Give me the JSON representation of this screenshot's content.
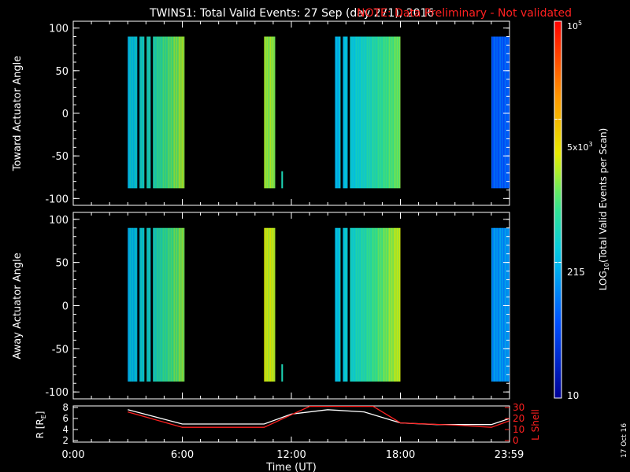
{
  "header": {
    "title": "TWINS1: Total Valid Events: 27 Sep (day 271), 2016",
    "note": "NOTE: Data Preliminary - Not validated"
  },
  "footer": {
    "date_stamp": "17 Oct 16"
  },
  "colors": {
    "note": "#ff2020",
    "axes": "#ffffff",
    "lshell": "#ff2020",
    "radius": "#ffffff"
  },
  "chart_data": [
    {
      "type": "heatmap",
      "ylabel": "Toward Actuator Angle",
      "ylim": [
        -108,
        108
      ],
      "yticks": [
        100,
        50,
        0,
        -50,
        -100
      ],
      "xlim_hours": [
        0,
        24
      ],
      "angle_range": [
        -88,
        90
      ],
      "time_blocks": [
        {
          "start": 3.0,
          "end": 6.1,
          "level": 0.38,
          "gradient_to": 0.6,
          "gaps": [
            3.55,
            3.95,
            4.3
          ]
        },
        {
          "start": 10.5,
          "end": 11.1,
          "level": 0.58
        },
        {
          "start": 14.4,
          "end": 18.0,
          "level": 0.36,
          "gradient_to": 0.56,
          "gaps": [
            14.75,
            15.15
          ]
        },
        {
          "start": 23.0,
          "end": 24.0,
          "level": 0.22
        }
      ],
      "spikes": [
        {
          "time": 11.45,
          "angle_from": -88,
          "angle_to": -68
        }
      ]
    },
    {
      "type": "heatmap",
      "ylabel": "Away Actuator Angle",
      "ylim": [
        -108,
        108
      ],
      "yticks": [
        100,
        50,
        0,
        -50,
        -100
      ],
      "xlim_hours": [
        0,
        24
      ],
      "angle_range": [
        -88,
        90
      ],
      "time_blocks": [
        {
          "start": 3.0,
          "end": 6.1,
          "level": 0.36,
          "gradient_to": 0.58,
          "gaps": [
            3.55,
            3.95,
            4.3
          ]
        },
        {
          "start": 10.5,
          "end": 11.1,
          "level": 0.62
        },
        {
          "start": 14.4,
          "end": 18.0,
          "level": 0.38,
          "gradient_to": 0.62,
          "gaps": [
            14.75,
            15.15
          ]
        },
        {
          "start": 23.0,
          "end": 24.0,
          "level": 0.3
        }
      ],
      "spikes": [
        {
          "time": 11.45,
          "angle_from": -88,
          "angle_to": -68
        }
      ]
    },
    {
      "type": "line",
      "xlabel": "Time (UT)",
      "xticks": [
        "0:00",
        "6:00",
        "12:00",
        "18:00",
        "23:59"
      ],
      "xtick_hours": [
        0,
        6,
        12,
        18,
        23.98
      ],
      "ylabel_left": "R [R",
      "ylabel_left_sub": "E",
      "ylabel_left_end": "]",
      "ylim_left": [
        2,
        8
      ],
      "yticks_left": [
        8,
        6,
        4,
        2
      ],
      "ylabel_right": "L Shell",
      "ylim_right": [
        0,
        30
      ],
      "yticks_right": [
        30,
        20,
        10,
        0
      ],
      "series": [
        {
          "name": "R",
          "axis": "left",
          "x": [
            3.0,
            6.0,
            10.5,
            12.0,
            14.0,
            16.0,
            18.0,
            20.0,
            23.0,
            24.0
          ],
          "y": [
            7.6,
            5.0,
            5.0,
            6.8,
            7.6,
            7.2,
            5.2,
            4.9,
            4.9,
            6.0
          ]
        },
        {
          "name": "L Shell",
          "axis": "right",
          "x": [
            3.0,
            6.0,
            10.5,
            13.0,
            14.5,
            16.5,
            18.0,
            21.0,
            23.0,
            24.0
          ],
          "y": [
            26,
            12,
            12,
            31,
            31,
            31,
            16,
            14,
            12,
            18
          ]
        }
      ]
    }
  ],
  "colorbar": {
    "label_prefix": "LOG",
    "label_sub": "10",
    "label_suffix": "(Total Valid Events per Scan)",
    "tick_top": "10",
    "tick_top_exp": "5",
    "tick_mid_base": "5x10",
    "tick_mid_exp": "3",
    "tick_low": "215",
    "tick_bottom": "10",
    "tick_levels": [
      1.0,
      0.74,
      0.36,
      0.0
    ]
  }
}
